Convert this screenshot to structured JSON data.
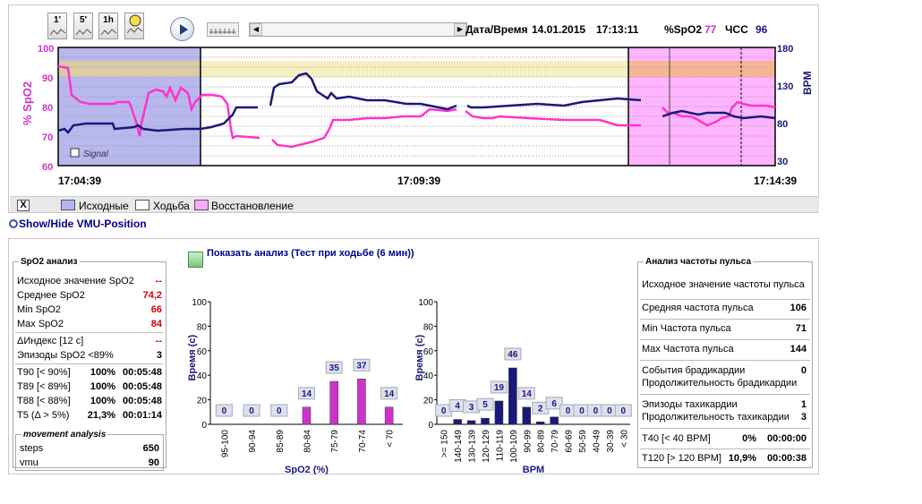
{
  "toolbar": {
    "buttons": [
      {
        "label": "1'"
      },
      {
        "label": "5'"
      },
      {
        "label": "1h"
      },
      {
        "label": ""
      }
    ],
    "datetime_label": "Дата/Время",
    "date": "14.01.2015",
    "time": "17:13:11",
    "spo2_label": "%SpO2",
    "spo2_value": "77",
    "hr_label": "ЧСС",
    "hr_value": "96"
  },
  "trend": {
    "left_axis": {
      "title": "% SpO2",
      "ticks": [
        "100",
        "90",
        "80",
        "70",
        "60"
      ]
    },
    "right_axis": {
      "title": "BPM",
      "ticks": [
        "180",
        "130",
        "80",
        "30"
      ]
    },
    "time_labels": [
      "17:04:39",
      "17:09:39",
      "17:14:39"
    ],
    "signal_label": "Signal"
  },
  "legend": {
    "close": "X",
    "items": [
      {
        "label": "Исходные",
        "color": "#b4b4ee"
      },
      {
        "label": "Ходьба",
        "color": "#ffffff"
      },
      {
        "label": "Восстановление",
        "color": "#ffaaff"
      }
    ]
  },
  "vmu_link": "Show/Hide VMU-Position",
  "spo2_panel": {
    "title": "SpO2 анализ",
    "rows": [
      {
        "label": "Исходное значение SpO2",
        "value": "--"
      },
      {
        "label": "Среднее SpO2",
        "value": "74,2"
      },
      {
        "label": "Min SpO2",
        "value": "66"
      },
      {
        "label": "Max SpO2",
        "value": "84"
      },
      {
        "label": "ΔИндекс [12 с]",
        "value": "--"
      },
      {
        "label": "Эпизоды SpO2 <89%",
        "value": "3"
      }
    ],
    "thresholds": [
      {
        "label": "T90 [< 90%]",
        "pct": "100%",
        "time": "00:05:48"
      },
      {
        "label": "T89 [< 89%]",
        "pct": "100%",
        "time": "00:05:48"
      },
      {
        "label": "T88 [< 88%]",
        "pct": "100%",
        "time": "00:05:48"
      },
      {
        "label": "T5 (Δ > 5%)",
        "pct": "21,3%",
        "time": "00:01:14"
      }
    ],
    "movement": {
      "title": "movement analysis",
      "rows": [
        {
          "label": "steps",
          "value": "650"
        },
        {
          "label": "vmu",
          "value": "90"
        }
      ]
    }
  },
  "analysis_title": "Показать анализ (Тест при ходьбе (6 мин))",
  "chart_data": [
    {
      "type": "bar",
      "ylabel": "Время (с)",
      "xlabel": "SpO2 (%)",
      "ylim": [
        0,
        100
      ],
      "yticks": [
        "0",
        "20",
        "40",
        "60",
        "80",
        "100"
      ],
      "categories": [
        "95-100",
        "90-94",
        "85-89",
        "80-84",
        "75-79",
        "70-74",
        "< 70"
      ],
      "values": [
        0,
        0,
        0,
        14,
        35,
        37,
        14
      ],
      "color": "#cc33cc"
    },
    {
      "type": "bar",
      "ylabel": "Время (с)",
      "xlabel": "BPM",
      "ylim": [
        0,
        100
      ],
      "yticks": [
        "0",
        "20",
        "40",
        "60",
        "80",
        "100"
      ],
      "categories": [
        ">= 150",
        "140-149",
        "130-139",
        "120-129",
        "110-119",
        "100-109",
        "90-99",
        "80-89",
        "70-79",
        "60-69",
        "50-59",
        "40-49",
        "30-39",
        "< 30"
      ],
      "values": [
        0,
        4,
        3,
        5,
        19,
        46,
        14,
        2,
        6,
        0,
        0,
        0,
        0,
        0
      ],
      "color": "#1a1a7a"
    }
  ],
  "hr_panel": {
    "title": "Анализ частоты пульса",
    "rows": [
      {
        "label": "Исходное значение частоты пульса",
        "value": ""
      },
      {
        "label": "Средняя частота пульса",
        "value": "106"
      },
      {
        "label": "Min Частота пульса",
        "value": "71"
      },
      {
        "label": "Max Частота пульса",
        "value": "144"
      },
      {
        "label": "События брадикардии",
        "value": "0"
      },
      {
        "label": "Продолжительность брадикардии",
        "value": ""
      },
      {
        "label": "Эпизоды тахикардии",
        "value": "1"
      },
      {
        "label": "Продолжительность тахикардии",
        "value": "3"
      }
    ],
    "thresholds": [
      {
        "label": "T40 [< 40 BPM]",
        "pct": "0%",
        "time": "00:00:00"
      },
      {
        "label": "T120 [> 120 BPM]",
        "pct": "10,9%",
        "time": "00:00:38"
      }
    ]
  }
}
